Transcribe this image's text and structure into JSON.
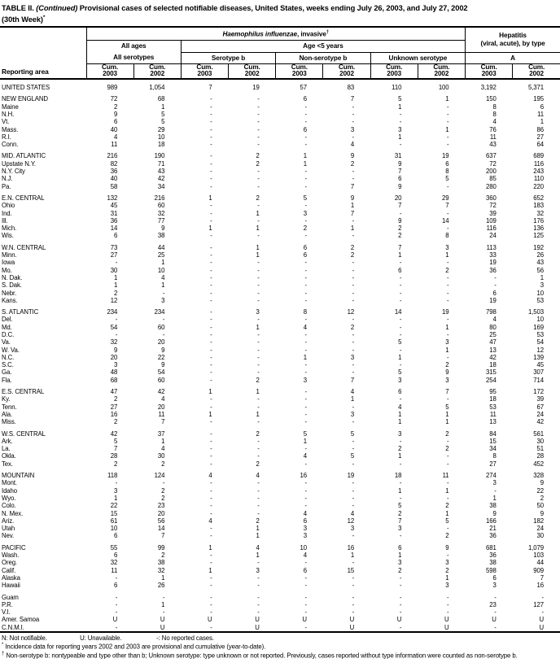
{
  "title": {
    "table_label": "TABLE II.",
    "continued": "(Continued)",
    "text": "Provisional cases of selected notifiable diseases, United States, weeks ending July 26, 2003, and July 27, 2002",
    "week": "(30th Week)",
    "week_sup": "*"
  },
  "header": {
    "reporting_area": "Reporting area",
    "disease_italic": "Haemophilus influenzae",
    "disease_rest": ", invasive",
    "disease_sup": "†",
    "all_ages": "All ages",
    "all_serotypes": "All serotypes",
    "age_under5": "Age <5 years",
    "serotype_b": "Serotype b",
    "non_serotype_b": "Non-serotype b",
    "unknown_serotype": "Unknown serotype",
    "hepatitis": "Hepatitis",
    "hepatitis_sub": "(viral, acute), by type",
    "hepatitis_type": "A",
    "cum_label": "Cum.",
    "year_columns": [
      "2003",
      "2002",
      "2003",
      "2002",
      "2003",
      "2002",
      "2003",
      "2002",
      "2003",
      "2002"
    ]
  },
  "rows": [
    {
      "area": "UNITED STATES",
      "gap": true,
      "values": [
        "989",
        "1,054",
        "7",
        "19",
        "57",
        "83",
        "110",
        "100",
        "3,192",
        "5,371"
      ]
    },
    {
      "area": "NEW ENGLAND",
      "gap": true,
      "values": [
        "72",
        "68",
        "-",
        "-",
        "6",
        "7",
        "5",
        "1",
        "150",
        "195"
      ]
    },
    {
      "area": "Maine",
      "gap": false,
      "values": [
        "2",
        "1",
        "-",
        "-",
        "-",
        "-",
        "1",
        "-",
        "8",
        "6"
      ]
    },
    {
      "area": "N.H.",
      "gap": false,
      "values": [
        "9",
        "5",
        "-",
        "-",
        "-",
        "-",
        "-",
        "-",
        "8",
        "11"
      ]
    },
    {
      "area": "Vt.",
      "gap": false,
      "values": [
        "6",
        "5",
        "-",
        "-",
        "-",
        "-",
        "-",
        "-",
        "4",
        "1"
      ]
    },
    {
      "area": "Mass.",
      "gap": false,
      "values": [
        "40",
        "29",
        "-",
        "-",
        "6",
        "3",
        "3",
        "1",
        "76",
        "86"
      ]
    },
    {
      "area": "R.I.",
      "gap": false,
      "values": [
        "4",
        "10",
        "-",
        "-",
        "-",
        "-",
        "1",
        "-",
        "11",
        "27"
      ]
    },
    {
      "area": "Conn.",
      "gap": false,
      "values": [
        "11",
        "18",
        "-",
        "-",
        "-",
        "4",
        "-",
        "-",
        "43",
        "64"
      ]
    },
    {
      "area": "MID. ATLANTIC",
      "gap": true,
      "values": [
        "216",
        "190",
        "-",
        "2",
        "1",
        "9",
        "31",
        "19",
        "637",
        "689"
      ]
    },
    {
      "area": "Upstate N.Y.",
      "gap": false,
      "values": [
        "82",
        "71",
        "-",
        "2",
        "1",
        "2",
        "9",
        "6",
        "72",
        "116"
      ]
    },
    {
      "area": "N.Y. City",
      "gap": false,
      "values": [
        "36",
        "43",
        "-",
        "-",
        "-",
        "-",
        "7",
        "8",
        "200",
        "243"
      ]
    },
    {
      "area": "N.J.",
      "gap": false,
      "values": [
        "40",
        "42",
        "-",
        "-",
        "-",
        "-",
        "6",
        "5",
        "85",
        "110"
      ]
    },
    {
      "area": "Pa.",
      "gap": false,
      "values": [
        "58",
        "34",
        "-",
        "-",
        "-",
        "7",
        "9",
        "-",
        "280",
        "220"
      ]
    },
    {
      "area": "E.N. CENTRAL",
      "gap": true,
      "values": [
        "132",
        "216",
        "1",
        "2",
        "5",
        "9",
        "20",
        "29",
        "360",
        "652"
      ]
    },
    {
      "area": "Ohio",
      "gap": false,
      "values": [
        "45",
        "60",
        "-",
        "-",
        "-",
        "1",
        "7",
        "7",
        "72",
        "183"
      ]
    },
    {
      "area": "Ind.",
      "gap": false,
      "values": [
        "31",
        "32",
        "-",
        "1",
        "3",
        "7",
        "-",
        "-",
        "39",
        "32"
      ]
    },
    {
      "area": "Ill.",
      "gap": false,
      "values": [
        "36",
        "77",
        "-",
        "-",
        "-",
        "-",
        "9",
        "14",
        "109",
        "176"
      ]
    },
    {
      "area": "Mich.",
      "gap": false,
      "values": [
        "14",
        "9",
        "1",
        "1",
        "2",
        "1",
        "2",
        "-",
        "116",
        "136"
      ]
    },
    {
      "area": "Wis.",
      "gap": false,
      "values": [
        "6",
        "38",
        "-",
        "-",
        "-",
        "-",
        "2",
        "8",
        "24",
        "125"
      ]
    },
    {
      "area": "W.N. CENTRAL",
      "gap": true,
      "values": [
        "73",
        "44",
        "-",
        "1",
        "6",
        "2",
        "7",
        "3",
        "113",
        "192"
      ]
    },
    {
      "area": "Minn.",
      "gap": false,
      "values": [
        "27",
        "25",
        "-",
        "1",
        "6",
        "2",
        "1",
        "1",
        "33",
        "26"
      ]
    },
    {
      "area": "Iowa",
      "gap": false,
      "values": [
        "-",
        "1",
        "-",
        "-",
        "-",
        "-",
        "-",
        "-",
        "19",
        "43"
      ]
    },
    {
      "area": "Mo.",
      "gap": false,
      "values": [
        "30",
        "10",
        "-",
        "-",
        "-",
        "-",
        "6",
        "2",
        "36",
        "56"
      ]
    },
    {
      "area": "N. Dak.",
      "gap": false,
      "values": [
        "1",
        "4",
        "-",
        "-",
        "-",
        "-",
        "-",
        "-",
        "-",
        "1"
      ]
    },
    {
      "area": "S. Dak.",
      "gap": false,
      "values": [
        "1",
        "1",
        "-",
        "-",
        "-",
        "-",
        "-",
        "-",
        "-",
        "3"
      ]
    },
    {
      "area": "Nebr.",
      "gap": false,
      "values": [
        "2",
        "-",
        "-",
        "-",
        "-",
        "-",
        "-",
        "-",
        "6",
        "10"
      ]
    },
    {
      "area": "Kans.",
      "gap": false,
      "values": [
        "12",
        "3",
        "-",
        "-",
        "-",
        "-",
        "-",
        "-",
        "19",
        "53"
      ]
    },
    {
      "area": "S. ATLANTIC",
      "gap": true,
      "values": [
        "234",
        "234",
        "-",
        "3",
        "8",
        "12",
        "14",
        "19",
        "798",
        "1,503"
      ]
    },
    {
      "area": "Del.",
      "gap": false,
      "values": [
        "-",
        "-",
        "-",
        "-",
        "-",
        "-",
        "-",
        "-",
        "4",
        "10"
      ]
    },
    {
      "area": "Md.",
      "gap": false,
      "values": [
        "54",
        "60",
        "-",
        "1",
        "4",
        "2",
        "-",
        "1",
        "80",
        "169"
      ]
    },
    {
      "area": "D.C.",
      "gap": false,
      "values": [
        "-",
        "-",
        "-",
        "-",
        "-",
        "-",
        "-",
        "-",
        "25",
        "53"
      ]
    },
    {
      "area": "Va.",
      "gap": false,
      "values": [
        "32",
        "20",
        "-",
        "-",
        "-",
        "-",
        "5",
        "3",
        "47",
        "54"
      ]
    },
    {
      "area": "W. Va.",
      "gap": false,
      "values": [
        "9",
        "9",
        "-",
        "-",
        "-",
        "-",
        "-",
        "1",
        "13",
        "12"
      ]
    },
    {
      "area": "N.C.",
      "gap": false,
      "values": [
        "20",
        "22",
        "-",
        "-",
        "1",
        "3",
        "1",
        "-",
        "42",
        "139"
      ]
    },
    {
      "area": "S.C.",
      "gap": false,
      "values": [
        "3",
        "9",
        "-",
        "-",
        "-",
        "-",
        "-",
        "2",
        "18",
        "45"
      ]
    },
    {
      "area": "Ga.",
      "gap": false,
      "values": [
        "48",
        "54",
        "-",
        "-",
        "-",
        "-",
        "5",
        "9",
        "315",
        "307"
      ]
    },
    {
      "area": "Fla.",
      "gap": false,
      "values": [
        "68",
        "60",
        "-",
        "2",
        "3",
        "7",
        "3",
        "3",
        "254",
        "714"
      ]
    },
    {
      "area": "E.S. CENTRAL",
      "gap": true,
      "values": [
        "47",
        "42",
        "1",
        "1",
        "-",
        "4",
        "6",
        "7",
        "95",
        "172"
      ]
    },
    {
      "area": "Ky.",
      "gap": false,
      "values": [
        "2",
        "4",
        "-",
        "-",
        "-",
        "1",
        "-",
        "-",
        "18",
        "39"
      ]
    },
    {
      "area": "Tenn.",
      "gap": false,
      "values": [
        "27",
        "20",
        "-",
        "-",
        "-",
        "-",
        "4",
        "5",
        "53",
        "67"
      ]
    },
    {
      "area": "Ala.",
      "gap": false,
      "values": [
        "16",
        "11",
        "1",
        "1",
        "-",
        "3",
        "1",
        "1",
        "11",
        "24"
      ]
    },
    {
      "area": "Miss.",
      "gap": false,
      "values": [
        "2",
        "7",
        "-",
        "-",
        "-",
        "-",
        "1",
        "1",
        "13",
        "42"
      ]
    },
    {
      "area": "W.S. CENTRAL",
      "gap": true,
      "values": [
        "42",
        "37",
        "-",
        "2",
        "5",
        "5",
        "3",
        "2",
        "84",
        "561"
      ]
    },
    {
      "area": "Ark.",
      "gap": false,
      "values": [
        "5",
        "1",
        "-",
        "-",
        "1",
        "-",
        "-",
        "-",
        "15",
        "30"
      ]
    },
    {
      "area": "La.",
      "gap": false,
      "values": [
        "7",
        "4",
        "-",
        "-",
        "-",
        "-",
        "2",
        "2",
        "34",
        "51"
      ]
    },
    {
      "area": "Okla.",
      "gap": false,
      "values": [
        "28",
        "30",
        "-",
        "-",
        "4",
        "5",
        "1",
        "-",
        "8",
        "28"
      ]
    },
    {
      "area": "Tex.",
      "gap": false,
      "values": [
        "2",
        "2",
        "-",
        "2",
        "-",
        "-",
        "-",
        "-",
        "27",
        "452"
      ]
    },
    {
      "area": "MOUNTAIN",
      "gap": true,
      "values": [
        "118",
        "124",
        "4",
        "4",
        "16",
        "19",
        "18",
        "11",
        "274",
        "328"
      ]
    },
    {
      "area": "Mont.",
      "gap": false,
      "values": [
        "-",
        "-",
        "-",
        "-",
        "-",
        "-",
        "-",
        "-",
        "3",
        "9"
      ]
    },
    {
      "area": "Idaho",
      "gap": false,
      "values": [
        "3",
        "2",
        "-",
        "-",
        "-",
        "-",
        "1",
        "1",
        "-",
        "22"
      ]
    },
    {
      "area": "Wyo.",
      "gap": false,
      "values": [
        "1",
        "2",
        "-",
        "-",
        "-",
        "-",
        "-",
        "-",
        "1",
        "2"
      ]
    },
    {
      "area": "Colo.",
      "gap": false,
      "values": [
        "22",
        "23",
        "-",
        "-",
        "-",
        "-",
        "5",
        "2",
        "38",
        "50"
      ]
    },
    {
      "area": "N. Mex.",
      "gap": false,
      "values": [
        "15",
        "20",
        "-",
        "-",
        "4",
        "4",
        "2",
        "1",
        "9",
        "9"
      ]
    },
    {
      "area": "Ariz.",
      "gap": false,
      "values": [
        "61",
        "56",
        "4",
        "2",
        "6",
        "12",
        "7",
        "5",
        "166",
        "182"
      ]
    },
    {
      "area": "Utah",
      "gap": false,
      "values": [
        "10",
        "14",
        "-",
        "1",
        "3",
        "3",
        "3",
        "-",
        "21",
        "24"
      ]
    },
    {
      "area": "Nev.",
      "gap": false,
      "values": [
        "6",
        "7",
        "-",
        "1",
        "3",
        "-",
        "-",
        "2",
        "36",
        "30"
      ]
    },
    {
      "area": "PACIFIC",
      "gap": true,
      "values": [
        "55",
        "99",
        "1",
        "4",
        "10",
        "16",
        "6",
        "9",
        "681",
        "1,079"
      ]
    },
    {
      "area": "Wash.",
      "gap": false,
      "values": [
        "6",
        "2",
        "-",
        "1",
        "4",
        "1",
        "1",
        "-",
        "36",
        "103"
      ]
    },
    {
      "area": "Oreg.",
      "gap": false,
      "values": [
        "32",
        "38",
        "-",
        "-",
        "-",
        "-",
        "3",
        "3",
        "38",
        "44"
      ]
    },
    {
      "area": "Calif.",
      "gap": false,
      "values": [
        "11",
        "32",
        "1",
        "3",
        "6",
        "15",
        "2",
        "2",
        "598",
        "909"
      ]
    },
    {
      "area": "Alaska",
      "gap": false,
      "values": [
        "-",
        "1",
        "-",
        "-",
        "-",
        "-",
        "-",
        "1",
        "6",
        "7"
      ]
    },
    {
      "area": "Hawaii",
      "gap": false,
      "values": [
        "6",
        "26",
        "-",
        "-",
        "-",
        "-",
        "-",
        "3",
        "3",
        "16"
      ]
    },
    {
      "area": "Guam",
      "gap": true,
      "values": [
        "-",
        "-",
        "-",
        "-",
        "-",
        "-",
        "-",
        "-",
        "-",
        "-"
      ]
    },
    {
      "area": "P.R.",
      "gap": false,
      "values": [
        "-",
        "1",
        "-",
        "-",
        "-",
        "-",
        "-",
        "-",
        "23",
        "127"
      ]
    },
    {
      "area": "V.I.",
      "gap": false,
      "values": [
        "-",
        "-",
        "-",
        "-",
        "-",
        "-",
        "-",
        "-",
        "-",
        "-"
      ]
    },
    {
      "area": "Amer. Samoa",
      "gap": false,
      "values": [
        "U",
        "U",
        "U",
        "U",
        "U",
        "U",
        "U",
        "U",
        "U",
        "U"
      ]
    },
    {
      "area": "C.N.M.I.",
      "gap": false,
      "values": [
        "-",
        "U",
        "-",
        "U",
        "-",
        "U",
        "-",
        "U",
        "-",
        "U"
      ]
    }
  ],
  "footnotes": {
    "legend": [
      "N: Not notifiable.",
      "U: Unavailable.",
      "-: No reported cases."
    ],
    "asterisk_marker": "*",
    "asterisk": "Incidence data for reporting years 2002 and 2003 are provisional and cumulative (year-to-date).",
    "dagger_marker": "†",
    "dagger": "Non-serotype b: nontypeable and type other than b; Unknown serotype: type unknown or not reported. Previously, cases reported without type information were counted as non-serotype b."
  }
}
